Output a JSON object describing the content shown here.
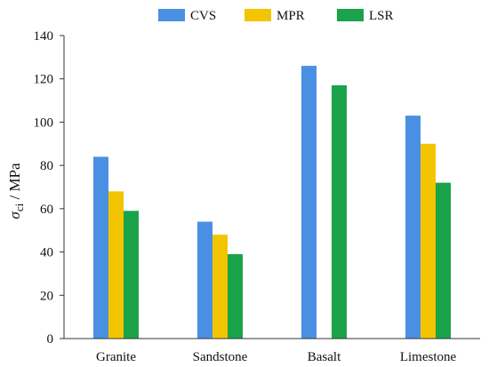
{
  "chart_data": {
    "type": "bar",
    "categories": [
      "Granite",
      "Sandstone",
      "Basalt",
      "Limestone"
    ],
    "series": [
      {
        "name": "CVS",
        "color": "#4a90e2",
        "values": [
          84,
          54,
          126,
          103
        ]
      },
      {
        "name": "MPR",
        "color": "#f2c500",
        "values": [
          68,
          48,
          null,
          90
        ]
      },
      {
        "name": "LSR",
        "color": "#1aa34a",
        "values": [
          59,
          39,
          117,
          72
        ]
      }
    ],
    "ylabel_symbol": "σ",
    "ylabel_subscript": "ci",
    "ylabel_unit": " / MPa",
    "ylim": [
      0,
      140
    ],
    "yticks": [
      0,
      20,
      40,
      60,
      80,
      100,
      120,
      140
    ],
    "grid": false,
    "legend_position": "top"
  }
}
